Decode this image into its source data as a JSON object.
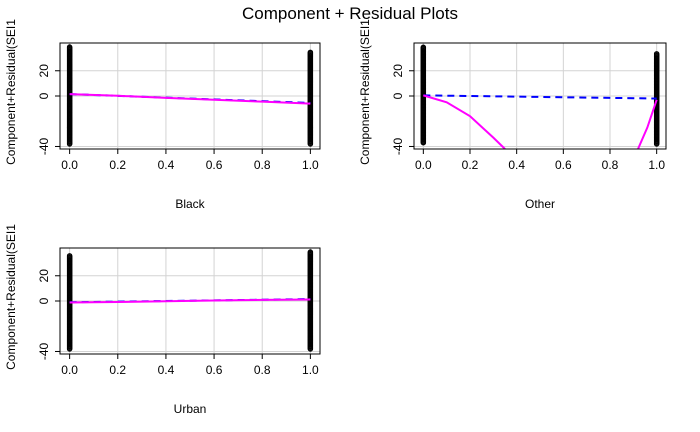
{
  "title": "Component + Residual Plots",
  "colors": {
    "points": "#000000",
    "fit_line": "#0000ff",
    "smooth_line": "#ff00ff",
    "grid": "#d3d3d3",
    "frame": "#000000"
  },
  "chart_data": [
    {
      "type": "scatter",
      "xlabel": "Black",
      "ylabel": "Component+Residual(SEI1",
      "xlim": [
        -0.04,
        1.04
      ],
      "ylim": [
        -42,
        42
      ],
      "xticks": [
        0.0,
        0.2,
        0.4,
        0.6,
        0.8,
        1.0
      ],
      "yticks": [
        -40,
        0,
        20
      ],
      "x_tick_labels": [
        "0.0",
        "0.2",
        "0.4",
        "0.6",
        "0.8",
        "1.0"
      ],
      "y_tick_labels": [
        "-40",
        "0",
        "20"
      ],
      "grid": true,
      "point_columns": [
        {
          "x": 0,
          "y_range": [
            -38,
            39
          ]
        },
        {
          "x": 1,
          "y_range": [
            -38,
            35
          ]
        }
      ],
      "fit_line": {
        "x": [
          0,
          1
        ],
        "y": [
          1.5,
          -5.5
        ]
      },
      "smooth_line": {
        "x": [
          0,
          0.2,
          0.4,
          0.6,
          0.8,
          1.0
        ],
        "y": [
          1.5,
          0.2,
          -1.5,
          -3.0,
          -4.5,
          -6.0
        ]
      }
    },
    {
      "type": "scatter",
      "xlabel": "Other",
      "ylabel": "Component+Residual(SEI1",
      "xlim": [
        -0.04,
        1.04
      ],
      "ylim": [
        -42,
        42
      ],
      "xticks": [
        0.0,
        0.2,
        0.4,
        0.6,
        0.8,
        1.0
      ],
      "yticks": [
        -40,
        0,
        20
      ],
      "x_tick_labels": [
        "0.0",
        "0.2",
        "0.4",
        "0.6",
        "0.8",
        "1.0"
      ],
      "y_tick_labels": [
        "-40",
        "0",
        "20"
      ],
      "grid": true,
      "point_columns": [
        {
          "x": 0,
          "y_range": [
            -37,
            39
          ]
        },
        {
          "x": 1,
          "y_range": [
            -38,
            34
          ]
        }
      ],
      "fit_line": {
        "x": [
          0,
          1
        ],
        "y": [
          0.5,
          -2.0
        ]
      },
      "smooth_line": {
        "x": [
          0,
          0.1,
          0.2,
          0.3,
          0.35,
          0.92,
          0.96,
          1.0
        ],
        "y": [
          0.5,
          -5,
          -16,
          -33,
          -42,
          -42,
          -25,
          -3
        ]
      }
    },
    {
      "type": "scatter",
      "xlabel": "Urban",
      "ylabel": "Component+Residual(SEI1",
      "xlim": [
        -0.04,
        1.04
      ],
      "ylim": [
        -42,
        42
      ],
      "xticks": [
        0.0,
        0.2,
        0.4,
        0.6,
        0.8,
        1.0
      ],
      "yticks": [
        -40,
        0,
        20
      ],
      "x_tick_labels": [
        "0.0",
        "0.2",
        "0.4",
        "0.6",
        "0.8",
        "1.0"
      ],
      "y_tick_labels": [
        "-40",
        "0",
        "20"
      ],
      "grid": true,
      "point_columns": [
        {
          "x": 0,
          "y_range": [
            -38,
            36
          ]
        },
        {
          "x": 1,
          "y_range": [
            -38,
            39
          ]
        }
      ],
      "fit_line": {
        "x": [
          0,
          1
        ],
        "y": [
          -1.0,
          1.5
        ]
      },
      "smooth_line": {
        "x": [
          0,
          0.2,
          0.4,
          0.6,
          0.8,
          1.0
        ],
        "y": [
          -1.2,
          -0.8,
          -0.2,
          0.4,
          0.9,
          1.2
        ]
      }
    }
  ]
}
